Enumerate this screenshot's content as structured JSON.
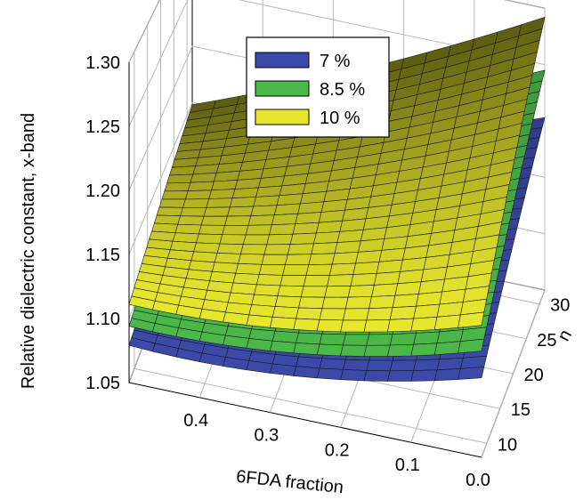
{
  "chart_data": {
    "type": "surface3d",
    "title": "",
    "xlabel": "6FDA fraction",
    "ylabel": "n",
    "zlabel": "Relative dielectric constant, x-band",
    "x_ticks": [
      "0.0",
      "0.1",
      "0.2",
      "0.3",
      "0.4"
    ],
    "y_ticks": [
      "10",
      "15",
      "20",
      "25",
      "30"
    ],
    "z_ticks": [
      "1.05",
      "1.10",
      "1.15",
      "1.20",
      "1.25",
      "1.30"
    ],
    "xlim": [
      0,
      0.5
    ],
    "ylim": [
      8,
      32
    ],
    "zlim": [
      1.05,
      1.3
    ],
    "grid": true,
    "legend_position": "top-center",
    "series": [
      {
        "name": "7 %",
        "color": "#3b4aa8",
        "corner_values": {
          "x0_y8": 1.112,
          "x0.5_y8": 1.079,
          "x0_y32": 1.203,
          "x0.5_y32": 1.103
        }
      },
      {
        "name": "8.5 %",
        "color": "#4cb84a",
        "corner_values": {
          "x0_y8": 1.133,
          "x0.5_y8": 1.094,
          "x0_y32": 1.245,
          "x0.5_y32": 1.125
        }
      },
      {
        "name": "10 %",
        "color": "#e6e62e",
        "corner_values": {
          "x0_y8": 1.153,
          "x0.5_y8": 1.111,
          "x0_y32": 1.292,
          "x0.5_y32": 1.148
        }
      }
    ]
  }
}
